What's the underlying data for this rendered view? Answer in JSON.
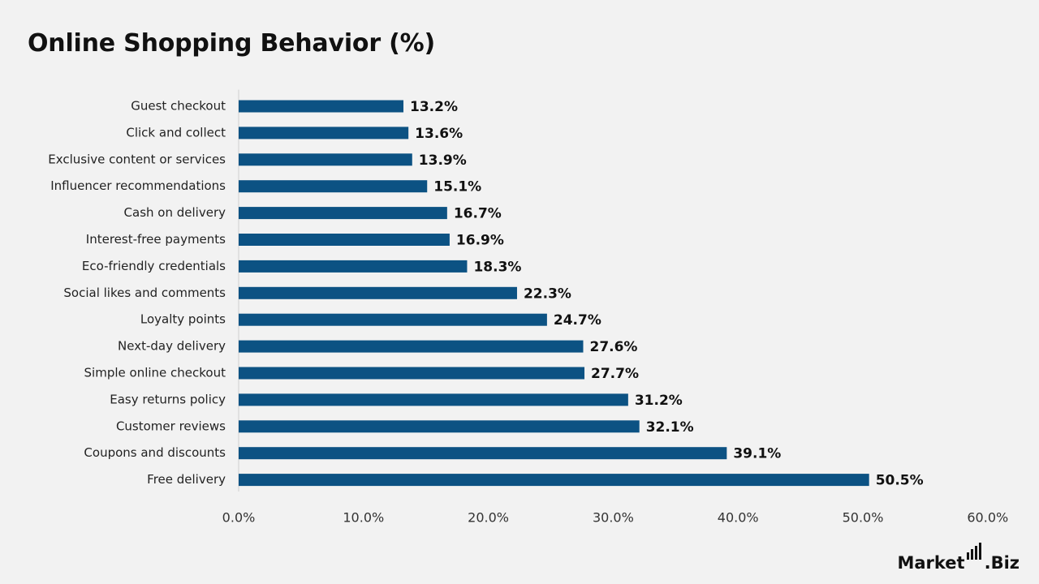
{
  "title": "Online Shopping Behavior (%)",
  "brand": {
    "name_left": "Market",
    "name_right": ".Biz"
  },
  "colors": {
    "bar": "#0c5283",
    "background": "#f2f2f2",
    "axis": "#d0d0d0"
  },
  "chart_data": {
    "type": "bar",
    "orientation": "horizontal",
    "title": "Online Shopping Behavior (%)",
    "categories": [
      "Guest checkout",
      "Click and collect",
      "Exclusive content or services",
      "Influencer recommendations",
      "Cash on delivery",
      "Interest-free payments",
      "Eco-friendly credentials",
      "Social likes and comments",
      "Loyalty points",
      "Next-day delivery",
      "Simple online checkout",
      "Easy returns policy",
      "Customer reviews",
      "Coupons and discounts",
      "Free delivery"
    ],
    "values": [
      13.2,
      13.6,
      13.9,
      15.1,
      16.7,
      16.9,
      18.3,
      22.3,
      24.7,
      27.6,
      27.7,
      31.2,
      32.1,
      39.1,
      50.5
    ],
    "value_labels": [
      "13.2%",
      "13.6%",
      "13.9%",
      "15.1%",
      "16.7%",
      "16.9%",
      "18.3%",
      "22.3%",
      "24.7%",
      "27.6%",
      "27.7%",
      "31.2%",
      "32.1%",
      "39.1%",
      "50.5%"
    ],
    "xlim": [
      0,
      60
    ],
    "x_ticks": [
      0,
      10,
      20,
      30,
      40,
      50,
      60
    ],
    "x_tick_labels": [
      "0.0%",
      "10.0%",
      "20.0%",
      "30.0%",
      "40.0%",
      "50.0%",
      "60.0%"
    ],
    "grid": false,
    "legend": "none"
  }
}
